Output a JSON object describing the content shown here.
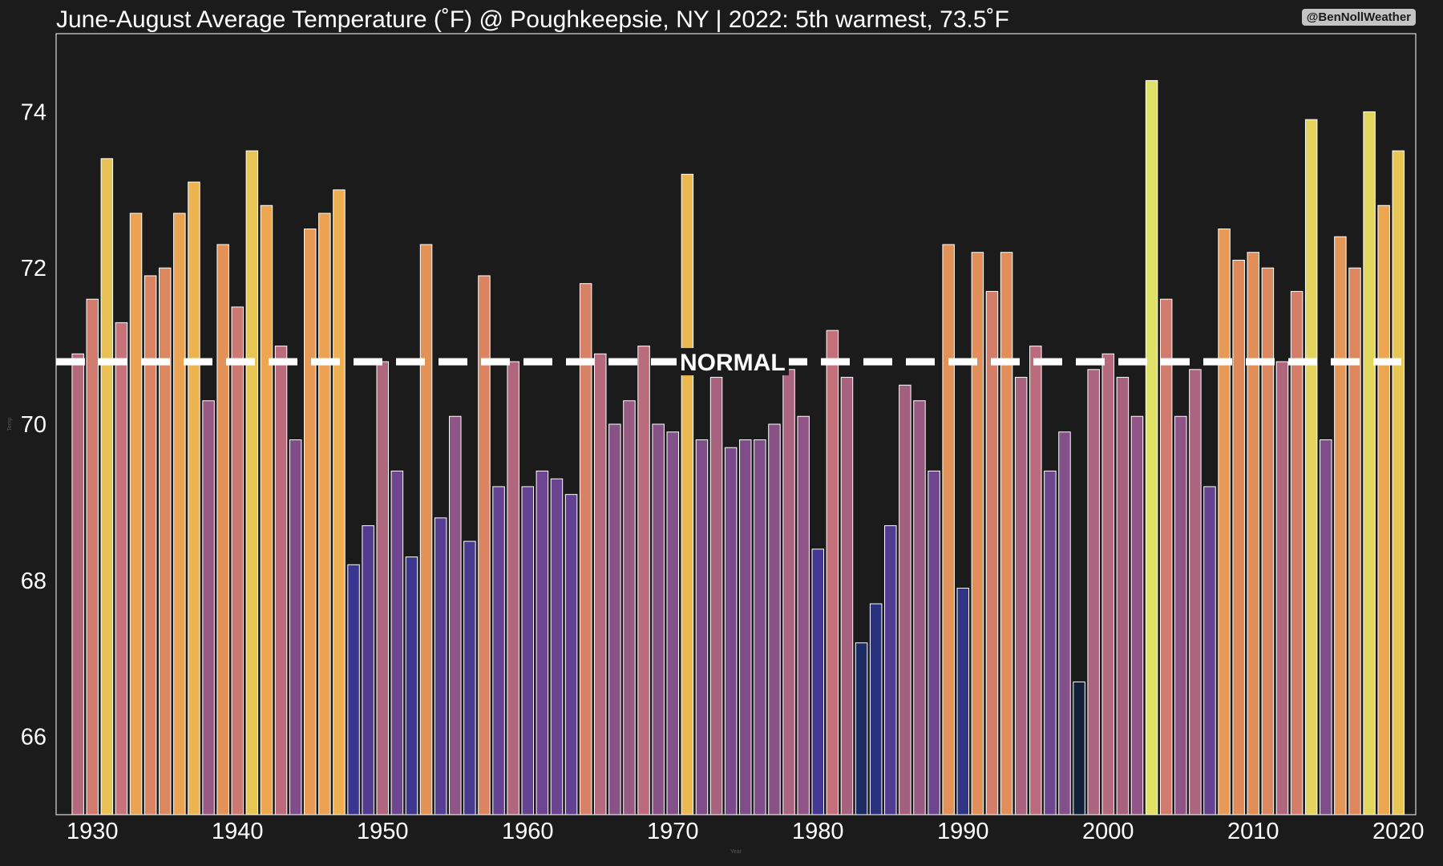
{
  "chart_data": {
    "type": "bar",
    "title": "June-August Average Temperature (˚F) @ Poughkeepsie, NY | 2022: 5th warmest, 73.5˚F",
    "credit": "@BenNollWeather",
    "xlabel": "Year",
    "ylabel": "Temp",
    "years": [
      1929,
      1930,
      1931,
      1932,
      1933,
      1934,
      1935,
      1936,
      1937,
      1938,
      1939,
      1940,
      1941,
      1942,
      1943,
      1944,
      1945,
      1946,
      1947,
      1948,
      1949,
      1950,
      1951,
      1952,
      1953,
      1954,
      1955,
      1956,
      1957,
      1958,
      1959,
      1960,
      1961,
      1962,
      1963,
      1964,
      1965,
      1966,
      1967,
      1968,
      1969,
      1970,
      1971,
      1972,
      1973,
      1974,
      1975,
      1976,
      1977,
      1978,
      1979,
      1980,
      1981,
      1982,
      1983,
      1984,
      1985,
      1986,
      1987,
      1988,
      1989,
      1990,
      1991,
      1992,
      1993,
      1994,
      1995,
      1996,
      1997,
      1998,
      1999,
      2000,
      2001,
      2002,
      2003,
      2004,
      2005,
      2006,
      2007,
      2008,
      2009,
      2010,
      2011,
      2012,
      2013,
      2014,
      2015,
      2016,
      2017,
      2018,
      2019,
      2020
    ],
    "values": [
      70.9,
      71.6,
      73.4,
      71.3,
      72.7,
      71.9,
      72.0,
      72.7,
      73.1,
      70.3,
      72.3,
      71.5,
      73.5,
      72.8,
      71.0,
      69.8,
      72.5,
      72.7,
      73.0,
      68.2,
      68.7,
      70.8,
      69.4,
      68.3,
      72.3,
      68.8,
      70.1,
      68.5,
      71.9,
      69.2,
      70.8,
      69.2,
      69.4,
      69.3,
      69.1,
      71.8,
      70.9,
      70.0,
      70.3,
      71.0,
      70.0,
      69.9,
      73.2,
      69.8,
      70.6,
      69.7,
      69.8,
      69.8,
      70.0,
      70.7,
      70.1,
      68.4,
      71.2,
      70.6,
      67.2,
      67.7,
      68.7,
      70.5,
      70.3,
      69.4,
      72.3,
      67.9,
      72.2,
      71.7,
      72.2,
      70.6,
      71.0,
      69.4,
      69.9,
      66.7,
      70.7,
      70.9,
      70.6,
      70.1,
      74.4,
      71.6,
      70.1,
      70.7,
      69.2,
      72.5,
      72.1,
      72.2,
      72.0,
      70.8,
      71.7,
      73.9,
      69.8,
      72.4,
      72.0,
      74.0,
      72.8,
      73.5
    ],
    "xlim": [
      1927.5,
      2021.2
    ],
    "ylim": [
      65.0,
      75.0
    ],
    "x_ticks": [
      1930,
      1940,
      1950,
      1960,
      1970,
      1980,
      1990,
      2000,
      2010,
      2020
    ],
    "y_ticks": [
      66,
      68,
      70,
      72,
      74
    ],
    "normal": {
      "value": 70.8,
      "label": "NORMAL"
    },
    "colormap": [
      "#0d1b2a",
      "#1f2e6b",
      "#35348f",
      "#5a3f93",
      "#7a4a8c",
      "#a2607f",
      "#c8727a",
      "#e08a5a",
      "#eeaa4f",
      "#e6cf58",
      "#dde26a"
    ],
    "color_range": [
      66.5,
      74.5
    ],
    "grid": false,
    "legend": "none"
  }
}
